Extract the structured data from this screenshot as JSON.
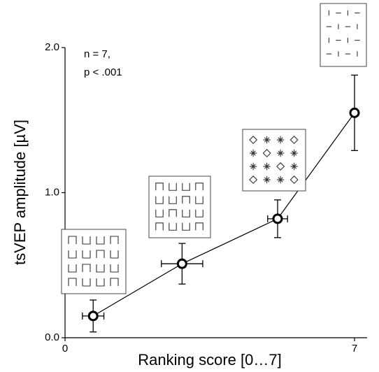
{
  "chart_data": {
    "type": "scatter",
    "x_label": "Ranking score [0…7]",
    "y_label": "tsVEP amplitude  [µV]",
    "annotations": [
      "n = 7,",
      "p < .001"
    ],
    "x": [
      0.68,
      2.83,
      5.14,
      7.0
    ],
    "values": [
      0.15,
      0.51,
      0.82,
      1.55
    ],
    "yerr": [
      0.11,
      0.14,
      0.13,
      0.26
    ],
    "xerr": [
      0.26,
      0.5,
      0.24,
      null
    ],
    "color": "#000000",
    "xlim": [
      0,
      7
    ],
    "xticks": [
      0,
      7
    ],
    "ylim": [
      0,
      2
    ],
    "yticks": [
      {
        "value": 0,
        "label": "0.0"
      },
      {
        "value": 1,
        "label": "1.0"
      },
      {
        "value": 2,
        "label": "2.0"
      }
    ]
  }
}
